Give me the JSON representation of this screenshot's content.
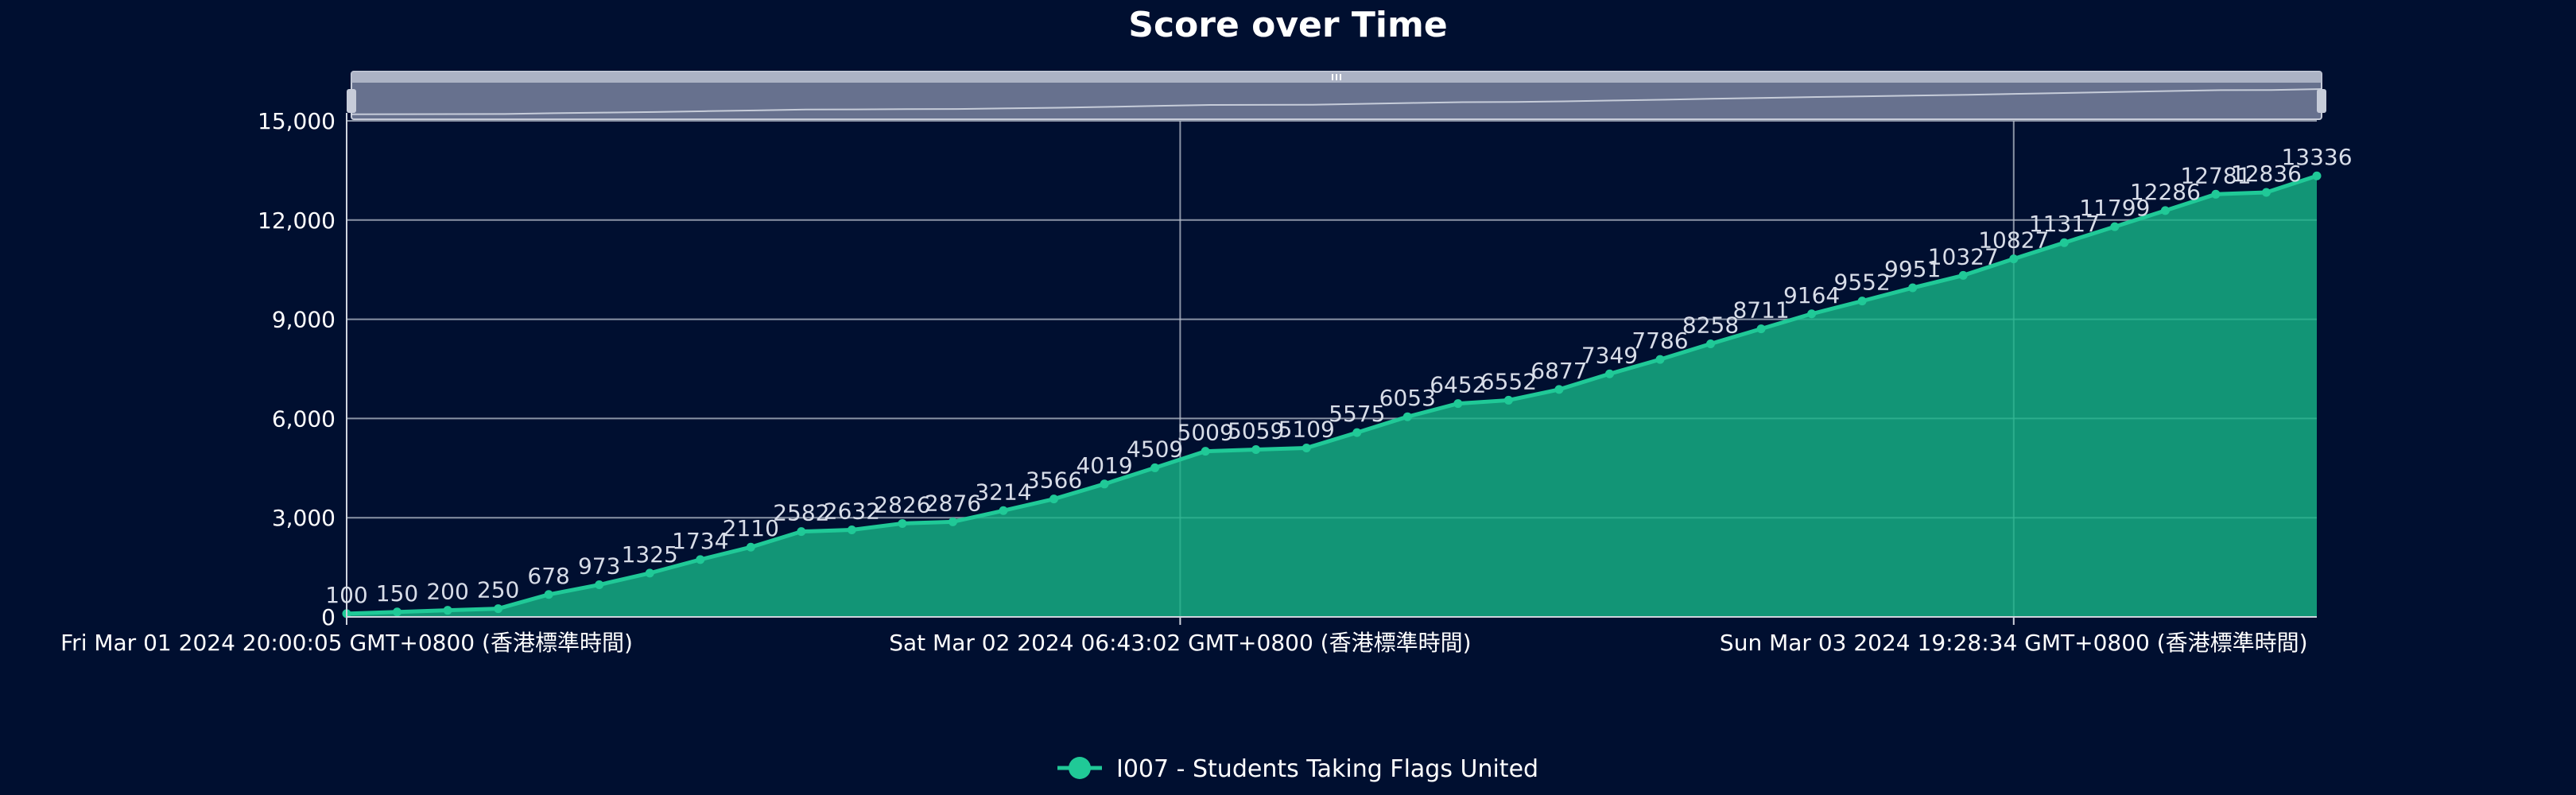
{
  "chart_data": {
    "type": "area",
    "title": "Score over Time",
    "xlabel": "",
    "ylabel": "",
    "ylim": [
      0,
      15000
    ],
    "yticks": [
      "0",
      "3,000",
      "6,000",
      "9,000",
      "12,000",
      "15,000"
    ],
    "xticks": [
      {
        "x": 0,
        "label": "Fri Mar 01 2024 20:00:05 GMT+0800 (香港標準時間)"
      },
      {
        "x": 16.5,
        "label": "Sat Mar 02 2024 06:43:02 GMT+0800 (香港標準時間)"
      },
      {
        "x": 33,
        "label": "Sun Mar 03 2024 19:28:34 GMT+0800 (香港標準時間)"
      }
    ],
    "grid": true,
    "legend_position": "bottom-center",
    "has_zoom_slider": true,
    "series": [
      {
        "name": "I007 - Students Taking Flags United",
        "color": "#16b386",
        "values": [
          100,
          150,
          200,
          250,
          678,
          973,
          1325,
          1734,
          2110,
          2582,
          2632,
          2826,
          2876,
          3214,
          3566,
          4019,
          4509,
          5009,
          5059,
          5109,
          5575,
          6053,
          6452,
          6552,
          6877,
          7349,
          7786,
          8258,
          8711,
          9164,
          9552,
          9951,
          10327,
          10827,
          11317,
          11799,
          12286,
          12781,
          12836,
          13336
        ]
      }
    ]
  }
}
